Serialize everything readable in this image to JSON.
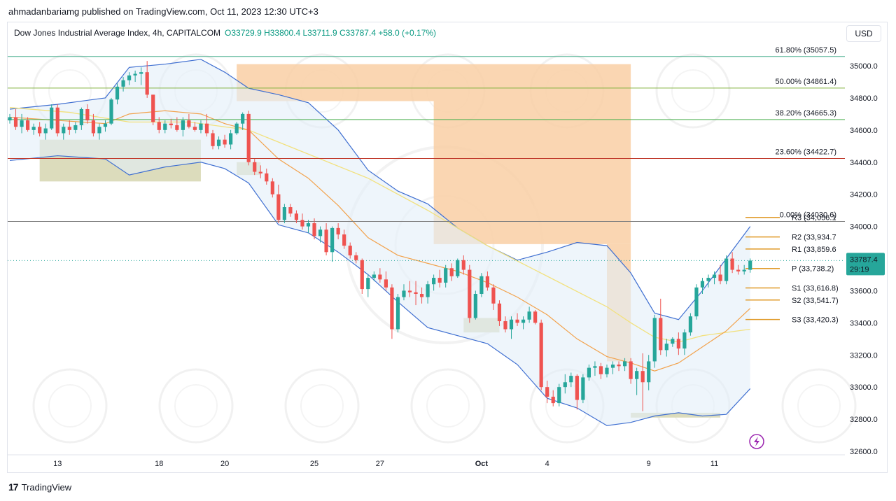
{
  "caption": "ahmadanbariamg published on TradingView.com, Oct 11, 2023 12:30 UTC+3",
  "legend": {
    "symbol": "Dow Jones Industrial Average Index, 4h, CAPITALCOM",
    "ohlc": "O33729.9 H33800.4 L33711.9 C33787.4 +58.0 (+0.17%)"
  },
  "currency_button": "USD",
  "brand": "TradingView",
  "colors": {
    "up": "#26a69a",
    "down": "#ef5350",
    "bollinger": "#3f6fd1",
    "bollinger_fill": "#e3eef9",
    "ema_orange": "#f2a24c",
    "ema_yellow": "#f2e17e",
    "pivot": "#e09a28",
    "supply_zone": "#f9cfa4",
    "demand_zone": "#d8d8b5"
  },
  "chart_data": {
    "type": "candlestick",
    "ylim": [
      32600,
      35200
    ],
    "y_ticks": [
      "35000.0",
      "34800.0",
      "34600.0",
      "34400.0",
      "34200.0",
      "34000.0",
      "33800.0",
      "33600.0",
      "33400.0",
      "33200.0",
      "33000.0",
      "32800.0",
      "32600.0"
    ],
    "x_ticks": [
      {
        "label": "13",
        "i": 8
      },
      {
        "label": "18",
        "i": 25
      },
      {
        "label": "20",
        "i": 36
      },
      {
        "label": "25",
        "i": 51
      },
      {
        "label": "27",
        "i": 62
      },
      {
        "label": "Oct",
        "i": 79
      },
      {
        "label": "4",
        "i": 90
      },
      {
        "label": "9",
        "i": 107
      },
      {
        "label": "11",
        "i": 118
      }
    ],
    "current_price": {
      "value": 33787.4,
      "label": "33787.4",
      "countdown": "29:19"
    },
    "fibonacci": [
      {
        "label": "61.80% (35057.5)",
        "value": 35057.5,
        "color": "#4caf8f"
      },
      {
        "label": "50.00% (34861.4)",
        "value": 34861.4,
        "color": "#81b03c"
      },
      {
        "label": "38.20% (34665.3)",
        "value": 34665.3,
        "color": "#4caf50"
      },
      {
        "label": "23.60% (34422.7)",
        "value": 34422.7,
        "color": "#c0392b"
      },
      {
        "label": "0.00% (34030.6)",
        "value": 34030.6,
        "color": "#808080"
      }
    ],
    "pivots": [
      {
        "label": "R3 (34,056.1",
        "value": 34056.1
      },
      {
        "label": "R2 (33,934.7",
        "value": 33934.7
      },
      {
        "label": "R1 (33,859.6",
        "value": 33859.6
      },
      {
        "label": "P (33,738.2)",
        "value": 33738.2
      },
      {
        "label": "S1 (33,616.8)",
        "value": 33616.8
      },
      {
        "label": "S2 (33,541.7)",
        "value": 33541.7
      },
      {
        "label": "S3 (33,420.3)",
        "value": 33420.3
      }
    ],
    "supply_zones": [
      {
        "i0": 38,
        "i1": 104,
        "top": 35010,
        "bottom": 34780
      },
      {
        "i0": 71,
        "i1": 104,
        "top": 34780,
        "bottom": 33890
      },
      {
        "i0": 100,
        "i1": 104,
        "top": 33890,
        "bottom": 33160
      }
    ],
    "demand_zones": [
      {
        "i0": 5,
        "i1": 32,
        "top": 34540,
        "bottom": 34280
      },
      {
        "i0": 38,
        "i1": 42,
        "top": 34400,
        "bottom": 34320
      },
      {
        "i0": 76,
        "i1": 82,
        "top": 33430,
        "bottom": 33340
      },
      {
        "i0": 104,
        "i1": 119,
        "top": 32840,
        "bottom": 32810
      }
    ],
    "candles": [
      [
        34660,
        34700,
        34640,
        34680
      ],
      [
        34680,
        34730,
        34600,
        34620
      ],
      [
        34620,
        34700,
        34580,
        34660
      ],
      [
        34660,
        34680,
        34590,
        34600
      ],
      [
        34600,
        34640,
        34570,
        34620
      ],
      [
        34620,
        34650,
        34560,
        34580
      ],
      [
        34580,
        34640,
        34540,
        34610
      ],
      [
        34610,
        34760,
        34600,
        34740
      ],
      [
        34740,
        34760,
        34560,
        34580
      ],
      [
        34580,
        34640,
        34540,
        34620
      ],
      [
        34620,
        34660,
        34570,
        34600
      ],
      [
        34600,
        34650,
        34580,
        34630
      ],
      [
        34630,
        34740,
        34600,
        34730
      ],
      [
        34730,
        34760,
        34640,
        34660
      ],
      [
        34660,
        34700,
        34560,
        34580
      ],
      [
        34580,
        34640,
        34540,
        34620
      ],
      [
        34620,
        34660,
        34590,
        34640
      ],
      [
        34640,
        34800,
        34630,
        34790
      ],
      [
        34790,
        34890,
        34760,
        34870
      ],
      [
        34870,
        34930,
        34840,
        34910
      ],
      [
        34910,
        34960,
        34880,
        34940
      ],
      [
        34940,
        34970,
        34900,
        34950
      ],
      [
        34950,
        34990,
        34880,
        34960
      ],
      [
        34960,
        35030,
        34800,
        34820
      ],
      [
        34820,
        34820,
        34630,
        34650
      ],
      [
        34650,
        34680,
        34580,
        34600
      ],
      [
        34600,
        34660,
        34580,
        34640
      ],
      [
        34640,
        34670,
        34610,
        34630
      ],
      [
        34630,
        34680,
        34590,
        34600
      ],
      [
        34600,
        34680,
        34560,
        34660
      ],
      [
        34660,
        34700,
        34610,
        34620
      ],
      [
        34620,
        34650,
        34590,
        34600
      ],
      [
        34600,
        34660,
        34580,
        34640
      ],
      [
        34640,
        34700,
        34560,
        34580
      ],
      [
        34580,
        34600,
        34480,
        34500
      ],
      [
        34500,
        34560,
        34480,
        34540
      ],
      [
        34540,
        34570,
        34490,
        34510
      ],
      [
        34510,
        34600,
        34480,
        34580
      ],
      [
        34580,
        34650,
        34570,
        34640
      ],
      [
        34640,
        34710,
        34600,
        34700
      ],
      [
        34700,
        34720,
        34380,
        34400
      ],
      [
        34400,
        34420,
        34320,
        34340
      ],
      [
        34340,
        34380,
        34300,
        34330
      ],
      [
        34330,
        34360,
        34260,
        34280
      ],
      [
        34280,
        34300,
        34180,
        34200
      ],
      [
        34200,
        34260,
        34020,
        34040
      ],
      [
        34040,
        34140,
        34020,
        34120
      ],
      [
        34120,
        34140,
        34060,
        34080
      ],
      [
        34080,
        34100,
        34020,
        34040
      ],
      [
        34040,
        34080,
        33980,
        34000
      ],
      [
        34000,
        34040,
        33960,
        34020
      ],
      [
        34020,
        34050,
        33920,
        33940
      ],
      [
        33940,
        34000,
        33900,
        33980
      ],
      [
        33980,
        34020,
        33820,
        33840
      ],
      [
        33840,
        34000,
        33780,
        33990
      ],
      [
        33990,
        34020,
        33920,
        33950
      ],
      [
        33950,
        33980,
        33860,
        33880
      ],
      [
        33880,
        33900,
        33800,
        33820
      ],
      [
        33820,
        33840,
        33770,
        33790
      ],
      [
        33790,
        33800,
        33580,
        33610
      ],
      [
        33610,
        33700,
        33560,
        33680
      ],
      [
        33680,
        33720,
        33660,
        33700
      ],
      [
        33700,
        33740,
        33650,
        33670
      ],
      [
        33670,
        33720,
        33600,
        33620
      ],
      [
        33620,
        33640,
        33300,
        33360
      ],
      [
        33360,
        33580,
        33340,
        33560
      ],
      [
        33560,
        33640,
        33540,
        33600
      ],
      [
        33600,
        33660,
        33560,
        33590
      ],
      [
        33590,
        33660,
        33510,
        33580
      ],
      [
        33580,
        33620,
        33520,
        33560
      ],
      [
        33560,
        33660,
        33520,
        33640
      ],
      [
        33640,
        33700,
        33600,
        33680
      ],
      [
        33680,
        33730,
        33620,
        33650
      ],
      [
        33650,
        33760,
        33620,
        33740
      ],
      [
        33740,
        33770,
        33660,
        33690
      ],
      [
        33690,
        33800,
        33680,
        33790
      ],
      [
        33790,
        33820,
        33700,
        33730
      ],
      [
        33730,
        33760,
        33400,
        33430
      ],
      [
        33430,
        33600,
        33420,
        33580
      ],
      [
        33580,
        33710,
        33560,
        33690
      ],
      [
        33690,
        33720,
        33600,
        33620
      ],
      [
        33620,
        33640,
        33480,
        33520
      ],
      [
        33520,
        33540,
        33380,
        33410
      ],
      [
        33410,
        33440,
        33340,
        33360
      ],
      [
        33360,
        33440,
        33300,
        33420
      ],
      [
        33420,
        33460,
        33380,
        33400
      ],
      [
        33400,
        33440,
        33360,
        33420
      ],
      [
        33420,
        33500,
        33400,
        33470
      ],
      [
        33470,
        33480,
        33390,
        33400
      ],
      [
        33400,
        33420,
        32980,
        33000
      ],
      [
        33000,
        33040,
        32900,
        32940
      ],
      [
        32940,
        32980,
        32880,
        32900
      ],
      [
        32900,
        33020,
        32880,
        33000
      ],
      [
        33000,
        33080,
        32960,
        33030
      ],
      [
        33030,
        33090,
        33000,
        33070
      ],
      [
        33070,
        33080,
        32860,
        32920
      ],
      [
        32920,
        33080,
        32900,
        33060
      ],
      [
        33060,
        33140,
        33040,
        33120
      ],
      [
        33120,
        33160,
        33070,
        33130
      ],
      [
        33130,
        33150,
        33050,
        33080
      ],
      [
        33080,
        33140,
        33060,
        33120
      ],
      [
        33120,
        33160,
        33080,
        33140
      ],
      [
        33140,
        33160,
        33100,
        33130
      ],
      [
        33130,
        33180,
        33100,
        33160
      ],
      [
        33160,
        33180,
        33020,
        33050
      ],
      [
        33050,
        33120,
        32950,
        33100
      ],
      [
        33100,
        33210,
        32850,
        33030
      ],
      [
        33030,
        33200,
        32980,
        33160
      ],
      [
        33160,
        33450,
        33120,
        33430
      ],
      [
        33430,
        33550,
        33200,
        33230
      ],
      [
        33230,
        33300,
        33190,
        33270
      ],
      [
        33270,
        33310,
        33250,
        33300
      ],
      [
        33300,
        33340,
        33200,
        33240
      ],
      [
        33240,
        33360,
        33200,
        33340
      ],
      [
        33340,
        33460,
        33320,
        33440
      ],
      [
        33440,
        33640,
        33420,
        33620
      ],
      [
        33620,
        33680,
        33580,
        33660
      ],
      [
        33660,
        33700,
        33620,
        33680
      ],
      [
        33680,
        33720,
        33640,
        33700
      ],
      [
        33700,
        33760,
        33640,
        33660
      ],
      [
        33660,
        33820,
        33640,
        33800
      ],
      [
        33800,
        33840,
        33710,
        33730
      ],
      [
        33730,
        33760,
        33700,
        33720
      ],
      [
        33720,
        33760,
        33700,
        33730
      ],
      [
        33729.9,
        33800.4,
        33711.9,
        33787.4
      ]
    ],
    "bollinger_upper": [
      [
        0,
        34730
      ],
      [
        8,
        34760
      ],
      [
        16,
        34800
      ],
      [
        20,
        34990
      ],
      [
        26,
        35010
      ],
      [
        32,
        35040
      ],
      [
        36,
        34960
      ],
      [
        40,
        34860
      ],
      [
        45,
        34820
      ],
      [
        50,
        34770
      ],
      [
        55,
        34600
      ],
      [
        60,
        34350
      ],
      [
        65,
        34220
      ],
      [
        70,
        34140
      ],
      [
        75,
        33990
      ],
      [
        80,
        33880
      ],
      [
        85,
        33790
      ],
      [
        90,
        33840
      ],
      [
        95,
        33900
      ],
      [
        100,
        33880
      ],
      [
        104,
        33710
      ],
      [
        108,
        33460
      ],
      [
        112,
        33420
      ],
      [
        116,
        33600
      ],
      [
        120,
        33800
      ],
      [
        124,
        34000
      ]
    ],
    "bollinger_lower": [
      [
        0,
        34410
      ],
      [
        8,
        34440
      ],
      [
        16,
        34420
      ],
      [
        20,
        34320
      ],
      [
        26,
        34370
      ],
      [
        32,
        34400
      ],
      [
        36,
        34360
      ],
      [
        40,
        34270
      ],
      [
        45,
        34010
      ],
      [
        50,
        33960
      ],
      [
        55,
        33840
      ],
      [
        60,
        33700
      ],
      [
        65,
        33530
      ],
      [
        70,
        33370
      ],
      [
        75,
        33320
      ],
      [
        80,
        33270
      ],
      [
        85,
        33140
      ],
      [
        90,
        32930
      ],
      [
        95,
        32870
      ],
      [
        100,
        32760
      ],
      [
        104,
        32780
      ],
      [
        108,
        32820
      ],
      [
        112,
        32840
      ],
      [
        116,
        32820
      ],
      [
        120,
        32830
      ],
      [
        124,
        32990
      ]
    ],
    "ema_orange": [
      [
        0,
        34680
      ],
      [
        8,
        34660
      ],
      [
        16,
        34640
      ],
      [
        20,
        34700
      ],
      [
        26,
        34720
      ],
      [
        32,
        34700
      ],
      [
        36,
        34640
      ],
      [
        40,
        34600
      ],
      [
        45,
        34420
      ],
      [
        50,
        34300
      ],
      [
        55,
        34130
      ],
      [
        60,
        33930
      ],
      [
        65,
        33820
      ],
      [
        70,
        33770
      ],
      [
        75,
        33720
      ],
      [
        80,
        33650
      ],
      [
        85,
        33560
      ],
      [
        90,
        33450
      ],
      [
        95,
        33300
      ],
      [
        100,
        33190
      ],
      [
        104,
        33150
      ],
      [
        108,
        33100
      ],
      [
        112,
        33150
      ],
      [
        116,
        33250
      ],
      [
        120,
        33350
      ],
      [
        124,
        33490
      ]
    ],
    "ema_yellow": [
      [
        0,
        34740
      ],
      [
        10,
        34710
      ],
      [
        20,
        34650
      ],
      [
        30,
        34650
      ],
      [
        40,
        34600
      ],
      [
        50,
        34450
      ],
      [
        60,
        34300
      ],
      [
        70,
        34100
      ],
      [
        80,
        33880
      ],
      [
        90,
        33690
      ],
      [
        100,
        33500
      ],
      [
        104,
        33400
      ],
      [
        108,
        33310
      ],
      [
        112,
        33280
      ],
      [
        116,
        33320
      ],
      [
        120,
        33340
      ],
      [
        124,
        33360
      ]
    ]
  }
}
